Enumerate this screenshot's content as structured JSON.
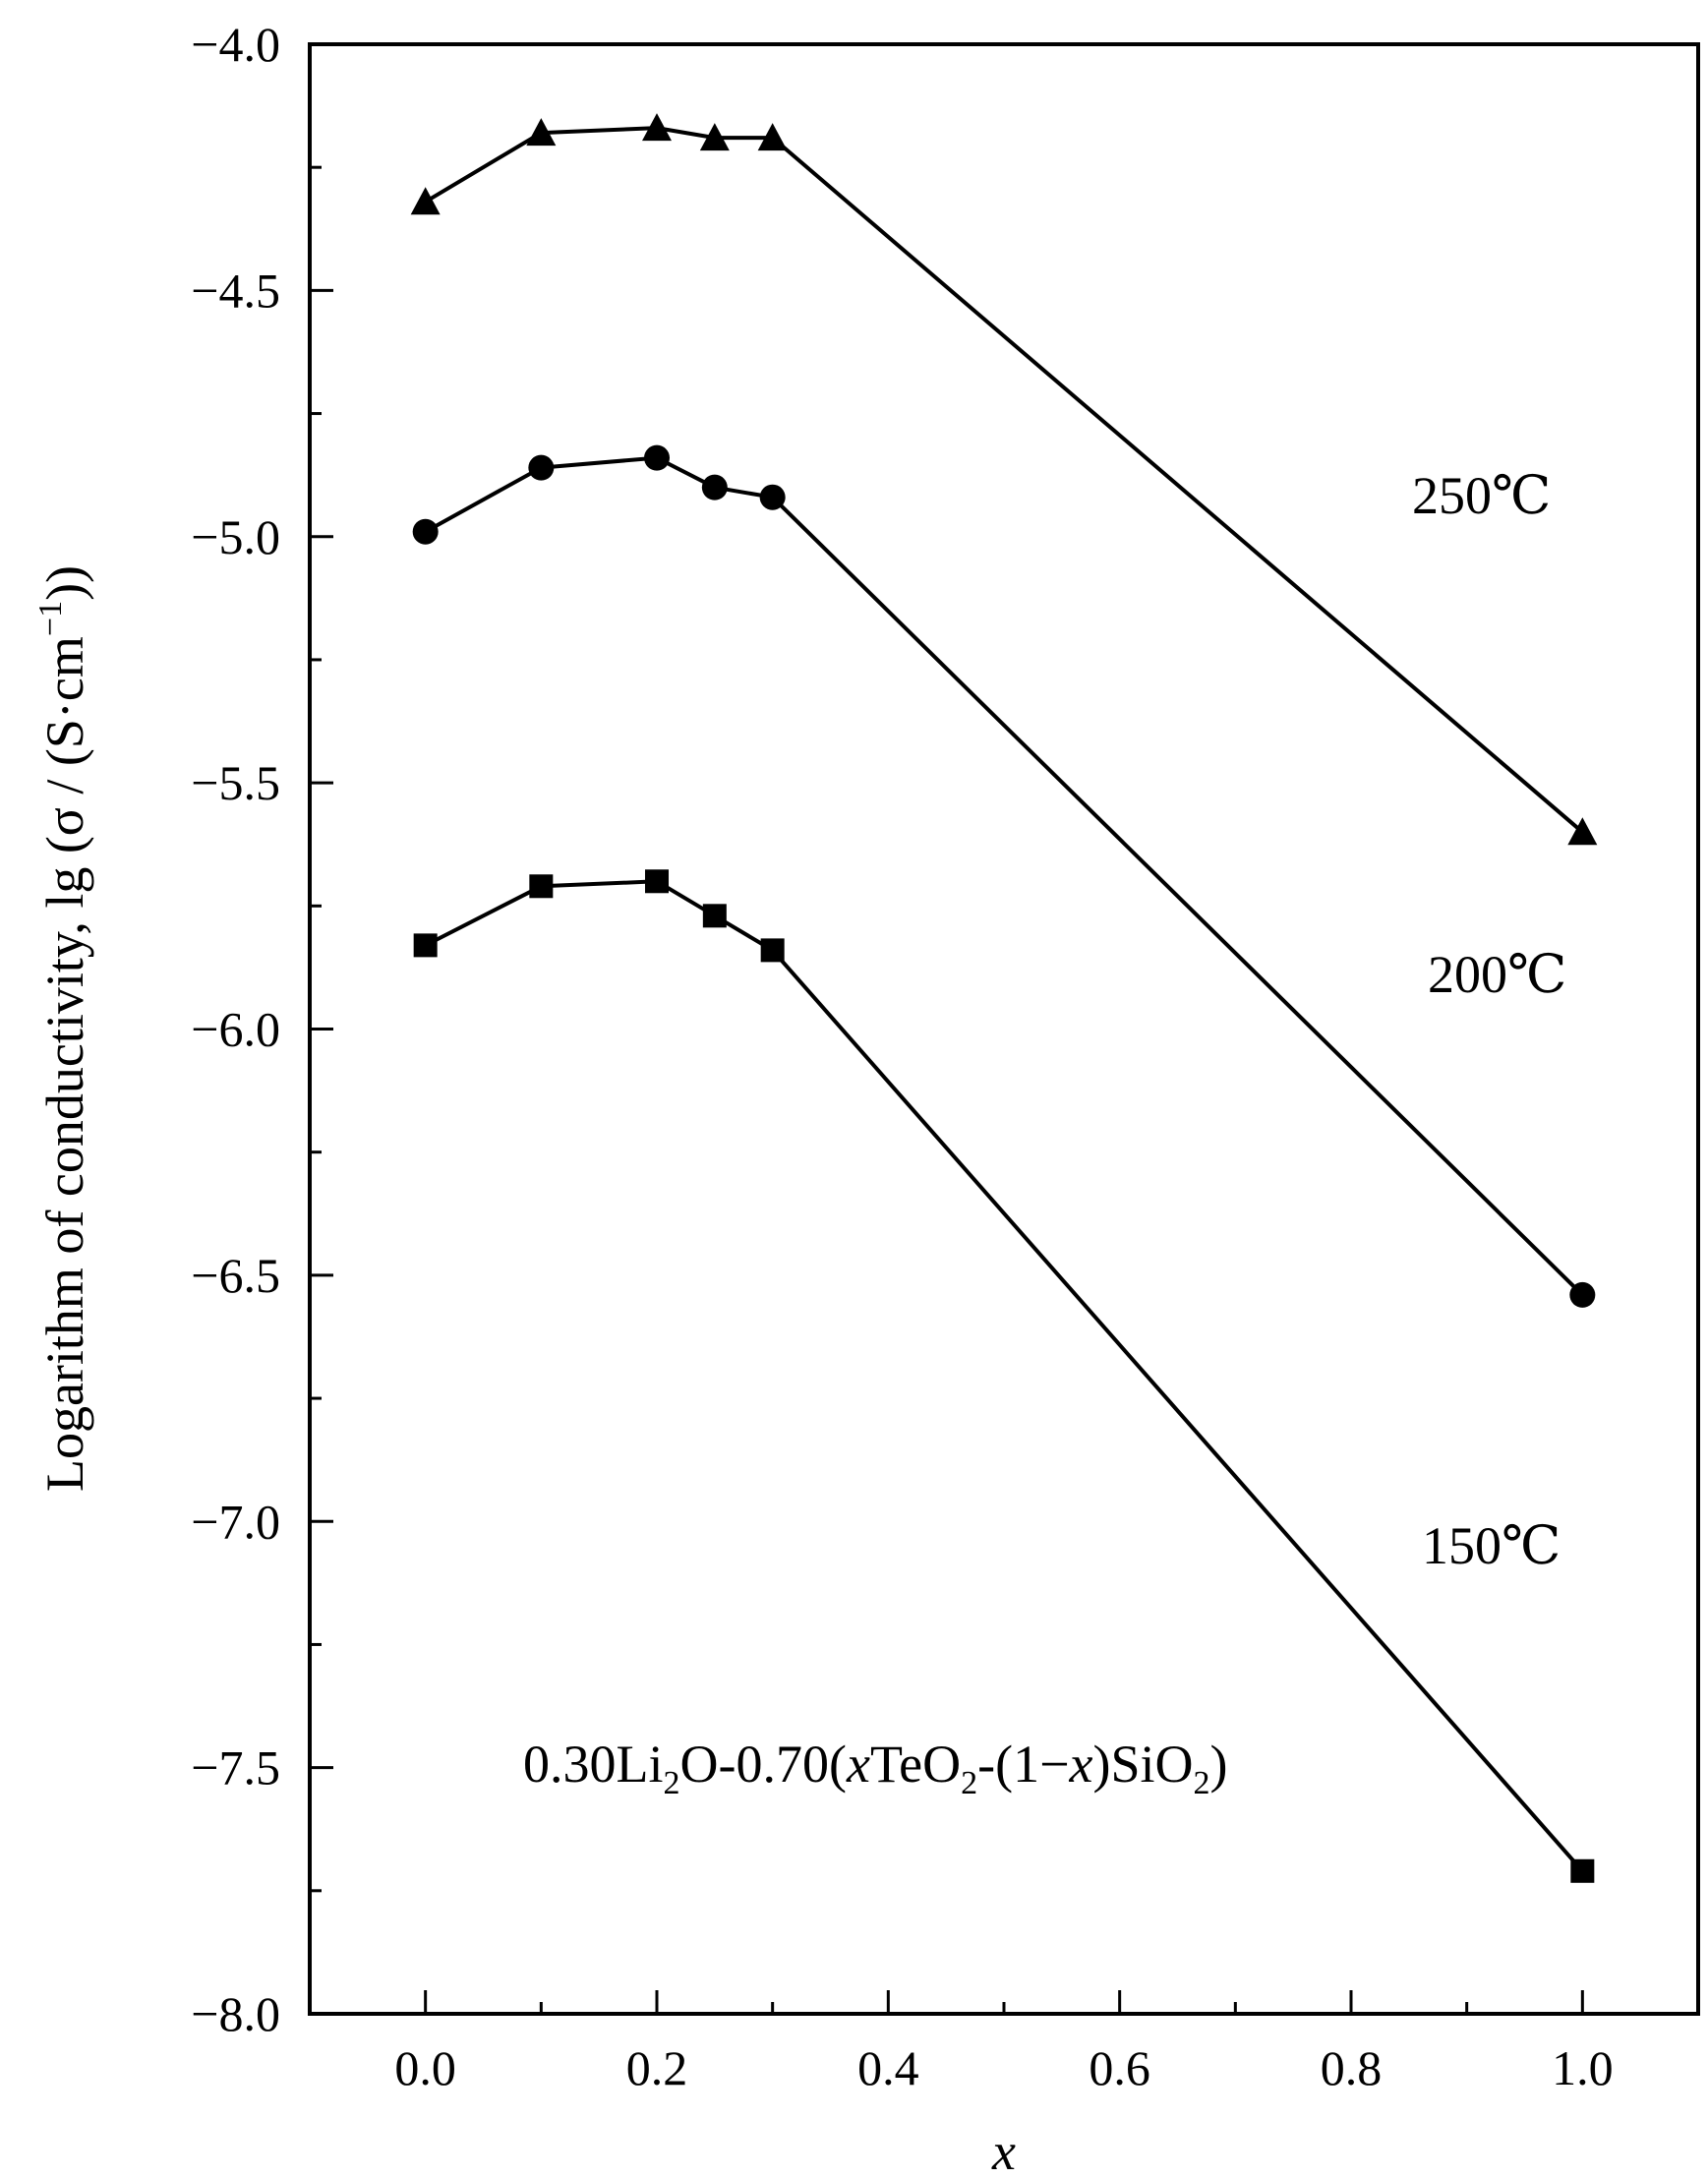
{
  "chart_data": {
    "type": "line",
    "title": "",
    "xlabel": "x",
    "ylabel": "Logarithm of conductivity, lg (σ / (S·cm",
    "ylabel_sup": "−1",
    "ylabel_tail": "))",
    "xlim": [
      -0.1,
      1.1
    ],
    "ylim": [
      -8.0,
      -4.0
    ],
    "x_major_ticks": [
      0.0,
      0.2,
      0.4,
      0.6,
      0.8,
      1.0
    ],
    "x_tick_labels": [
      "0.0",
      "0.2",
      "0.4",
      "0.6",
      "0.8",
      "1.0"
    ],
    "x_minor_ticks": [
      -0.1,
      0.1,
      0.3,
      0.5,
      0.7,
      0.9,
      1.1
    ],
    "y_major_ticks": [
      -4.0,
      -4.5,
      -5.0,
      -5.5,
      -6.0,
      -6.5,
      -7.0,
      -7.5,
      -8.0
    ],
    "y_tick_labels": [
      "−4.0",
      "−4.5",
      "−5.0",
      "−5.5",
      "−6.0",
      "−6.5",
      "−7.0",
      "−7.5",
      "−8.0"
    ],
    "y_minor_ticks": [
      -4.25,
      -4.75,
      -5.25,
      -5.75,
      -6.25,
      -6.75,
      -7.25,
      -7.75
    ],
    "grid": false,
    "legend": "none",
    "series": [
      {
        "name": "250℃",
        "marker": "triangle",
        "x": [
          0.0,
          0.1,
          0.2,
          0.25,
          0.3,
          1.0
        ],
        "y": [
          -4.32,
          -4.18,
          -4.17,
          -4.19,
          -4.19,
          -5.6
        ]
      },
      {
        "name": "200℃",
        "marker": "circle",
        "x": [
          0.0,
          0.1,
          0.2,
          0.25,
          0.3,
          1.0
        ],
        "y": [
          -4.99,
          -4.86,
          -4.84,
          -4.9,
          -4.92,
          -6.54
        ]
      },
      {
        "name": "150℃",
        "marker": "square",
        "x": [
          0.0,
          0.1,
          0.2,
          0.25,
          0.3,
          1.0
        ],
        "y": [
          -5.83,
          -5.71,
          -5.7,
          -5.77,
          -5.84,
          -7.71
        ]
      }
    ],
    "annotations": {
      "label_250": "250℃",
      "label_200": "200℃",
      "label_150": "150℃",
      "formula": {
        "p1": "0.30Li",
        "s1": "2",
        "p2": "O-0.70(",
        "i1": "x",
        "p3": "TeO",
        "s2": "2",
        "p4": "-(1−",
        "i2": "x",
        "p5": ")SiO",
        "s3": "2",
        "p6": ")"
      }
    }
  }
}
